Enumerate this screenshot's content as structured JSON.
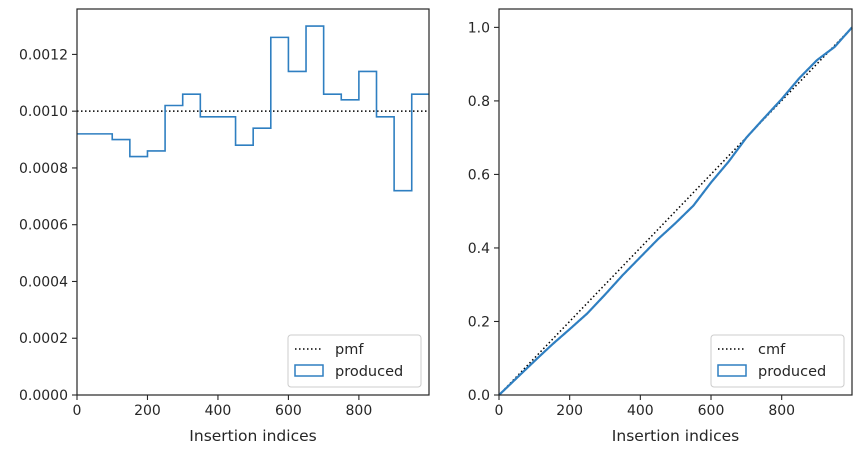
{
  "chart_data": [
    {
      "type": "line",
      "panel": "left",
      "xlabel": "Insertion indices",
      "ylabel": "",
      "xlim": [
        0,
        999
      ],
      "ylim": [
        0,
        0.00136
      ],
      "xticks": [
        0,
        200,
        400,
        600,
        800
      ],
      "xtick_labels": [
        "0",
        "200",
        "400",
        "600",
        "800"
      ],
      "yticks": [
        0,
        0.0002,
        0.0004,
        0.0006,
        0.0008,
        0.001,
        0.0012
      ],
      "ytick_labels": [
        "0.0000",
        "0.0002",
        "0.0004",
        "0.0006",
        "0.0008",
        "0.0010",
        "0.0012"
      ],
      "grid": false,
      "legend_position": "lower-right",
      "reference": {
        "name": "pmf",
        "style": "dotted",
        "color": "#000000",
        "value": 0.001
      },
      "series": [
        {
          "name": "produced",
          "style": "step-outline",
          "color": "#2f7fc1",
          "bin_edges": [
            0,
            50,
            100,
            150,
            200,
            250,
            300,
            350,
            400,
            450,
            500,
            550,
            600,
            650,
            700,
            750,
            800,
            850,
            900,
            950,
            999
          ],
          "values": [
            0.00092,
            0.00092,
            0.0009,
            0.00084,
            0.00086,
            0.00102,
            0.00106,
            0.00098,
            0.00098,
            0.00088,
            0.00094,
            0.00126,
            0.00114,
            0.0013,
            0.00106,
            0.00104,
            0.00114,
            0.00098,
            0.00072,
            0.00106
          ]
        }
      ]
    },
    {
      "type": "line",
      "panel": "right",
      "xlabel": "Insertion indices",
      "ylabel": "",
      "xlim": [
        0,
        999
      ],
      "ylim": [
        0,
        1.05
      ],
      "xticks": [
        0,
        200,
        400,
        600,
        800
      ],
      "xtick_labels": [
        "0",
        "200",
        "400",
        "600",
        "800"
      ],
      "yticks": [
        0,
        0.2,
        0.4,
        0.6,
        0.8,
        1.0
      ],
      "ytick_labels": [
        "0.0",
        "0.2",
        "0.4",
        "0.6",
        "0.8",
        "1.0"
      ],
      "grid": false,
      "legend_position": "lower-right",
      "reference": {
        "name": "cmf",
        "style": "dotted",
        "color": "#000000",
        "x": [
          0,
          999
        ],
        "y": [
          0,
          1
        ]
      },
      "series": [
        {
          "name": "produced",
          "style": "step",
          "color": "#2f7fc1",
          "x": [
            0,
            50,
            100,
            150,
            200,
            250,
            300,
            350,
            400,
            450,
            500,
            550,
            600,
            650,
            700,
            750,
            800,
            850,
            900,
            950,
            999
          ],
          "y": [
            0,
            0.046,
            0.092,
            0.137,
            0.179,
            0.222,
            0.273,
            0.326,
            0.375,
            0.424,
            0.468,
            0.515,
            0.578,
            0.635,
            0.7,
            0.753,
            0.805,
            0.862,
            0.911,
            0.947,
            1.0
          ]
        }
      ]
    }
  ]
}
